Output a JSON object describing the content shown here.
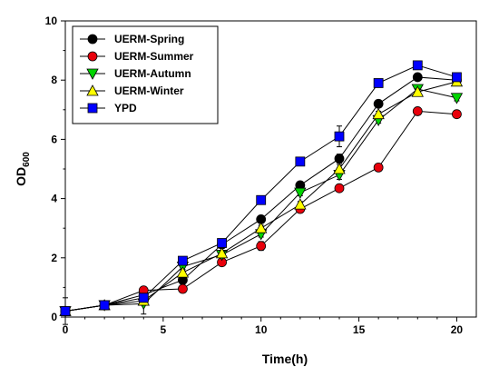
{
  "chart_data": {
    "type": "line",
    "xlabel": "Time(h)",
    "ylabel_main": "OD",
    "ylabel_sub": "600",
    "xlim": [
      0,
      21
    ],
    "ylim": [
      0,
      10
    ],
    "xticks": [
      0,
      5,
      10,
      15,
      20
    ],
    "yticks": [
      0,
      2,
      4,
      6,
      8,
      10
    ],
    "grid": false,
    "legend_position": "top-left",
    "x": [
      0,
      2,
      4,
      6,
      8,
      10,
      12,
      14,
      16,
      18,
      20
    ],
    "series": [
      {
        "name": "UERM-Spring",
        "marker": "circle",
        "color": "#000000",
        "values": [
          0.2,
          0.4,
          0.75,
          1.25,
          2.45,
          3.3,
          4.45,
          5.35,
          7.2,
          8.1,
          8.0
        ],
        "errors": [
          0.1,
          0.15,
          0.1,
          0.1,
          0.1,
          0.1,
          0.1,
          0.15,
          0.1,
          0.1,
          0.1
        ]
      },
      {
        "name": "UERM-Summer",
        "marker": "circle",
        "color": "#e8000b",
        "values": [
          0.2,
          0.4,
          0.9,
          0.95,
          1.85,
          2.4,
          3.65,
          4.35,
          5.05,
          6.95,
          6.85
        ],
        "errors": [
          0.1,
          0.1,
          0.1,
          0.1,
          0.1,
          0.15,
          0.1,
          0.1,
          0.1,
          0.1,
          0.1
        ]
      },
      {
        "name": "UERM-Autumn",
        "marker": "triangle-down",
        "color": "#00d400",
        "values": [
          0.2,
          0.4,
          0.45,
          1.7,
          2.1,
          2.8,
          4.2,
          4.8,
          6.65,
          7.7,
          7.4
        ],
        "errors": [
          0.1,
          0.1,
          0.35,
          0.1,
          0.1,
          0.1,
          0.1,
          0.15,
          0.1,
          0.1,
          0.1
        ]
      },
      {
        "name": "UERM-Winter",
        "marker": "triangle-up",
        "color": "#ffff00",
        "values": [
          0.2,
          0.4,
          0.55,
          1.5,
          2.15,
          3.0,
          3.8,
          5.0,
          6.85,
          7.6,
          7.95
        ],
        "errors": [
          0.45,
          0.1,
          0.1,
          0.1,
          0.1,
          0.1,
          0.1,
          0.15,
          0.1,
          0.1,
          0.1
        ]
      },
      {
        "name": "YPD",
        "marker": "square",
        "color": "#0000ff",
        "values": [
          0.2,
          0.4,
          0.65,
          1.9,
          2.5,
          3.95,
          5.25,
          6.1,
          7.9,
          8.5,
          8.1
        ],
        "errors": [
          0.1,
          0.1,
          0.1,
          0.1,
          0.1,
          0.1,
          0.1,
          0.35,
          0.1,
          0.1,
          0.1
        ]
      }
    ]
  }
}
